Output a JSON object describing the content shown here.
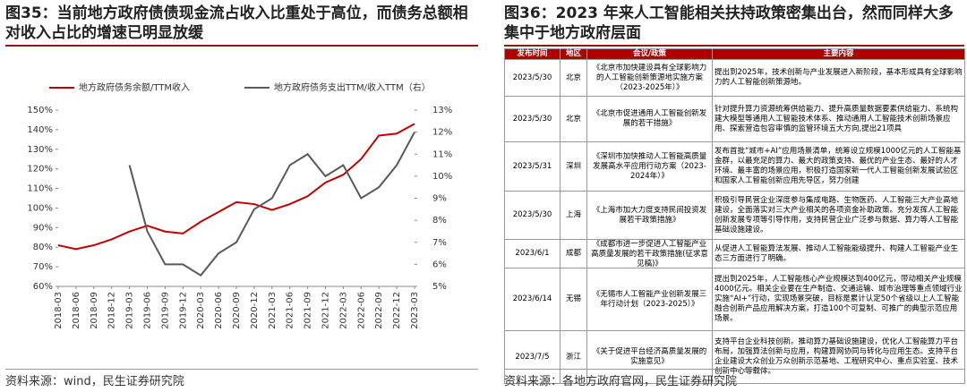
{
  "left": {
    "title": "图35：当前地方政府债债现金流占收入比重处于高位，而债务总额相对收入占比的增速已明显放缓",
    "source": "资料来源：wind，民生证券研究院"
  },
  "chart_data": {
    "type": "line",
    "categories": [
      "2018-03",
      "2018-06",
      "2018-09",
      "2018-12",
      "2019-03",
      "2019-06",
      "2019-09",
      "2019-12",
      "2020-03",
      "2020-06",
      "2020-09",
      "2020-12",
      "2021-03",
      "2021-06",
      "2021-09",
      "2021-12",
      "2022-03",
      "2022-06",
      "2022-09",
      "2022-12",
      "2023-03"
    ],
    "series": [
      {
        "name": "地方政府债务余额/TTM收入",
        "color": "#c00000",
        "values": [
          81,
          79,
          81,
          84,
          88,
          91,
          88,
          87,
          93,
          98,
          103,
          102,
          99,
          102,
          106,
          113,
          117,
          125,
          137,
          138,
          143
        ]
      },
      {
        "name": "地方政府债务支出TTM/收入TTM（右）",
        "color": "#595959",
        "axis": "y2",
        "values": [
          null,
          null,
          null,
          null,
          10.5,
          7.5,
          6.0,
          6.0,
          5.5,
          6.5,
          7.0,
          8.5,
          9.0,
          10.5,
          11.0,
          10.0,
          10.5,
          9.0,
          9.5,
          10.5,
          12.0
        ]
      }
    ],
    "ylim": [
      60,
      150
    ],
    "yticks": [
      {
        "value": 60,
        "label": "60%"
      },
      {
        "value": 70,
        "label": "70%"
      },
      {
        "value": 80,
        "label": "80%"
      },
      {
        "value": 90,
        "label": "90%"
      },
      {
        "value": 100,
        "label": "100%"
      },
      {
        "value": 110,
        "label": "110%"
      },
      {
        "value": 120,
        "label": "120%"
      },
      {
        "value": 130,
        "label": "130%"
      },
      {
        "value": 140,
        "label": "140%"
      },
      {
        "value": 150,
        "label": "150%"
      }
    ],
    "y2lim": [
      5,
      13
    ],
    "y2ticks": [
      {
        "value": 5,
        "label": "5%"
      },
      {
        "value": 6,
        "label": "6%"
      },
      {
        "value": 7,
        "label": "7%"
      },
      {
        "value": 8,
        "label": "8%"
      },
      {
        "value": 9,
        "label": "9%"
      },
      {
        "value": 10,
        "label": "10%"
      },
      {
        "value": 11,
        "label": "11%"
      },
      {
        "value": 12,
        "label": "12%"
      },
      {
        "value": 13,
        "label": "13%"
      }
    ],
    "legend": "top"
  },
  "right": {
    "title": "图36：2023 年来人工智能相关扶持政策密集出台，然而同样大多集中于地方政府层面",
    "source": "资料来源：各地方政府官网，民生证券研究院"
  },
  "table": {
    "header": [
      "发布时间",
      "地区",
      "会议/政策",
      "主要内容"
    ],
    "rows": [
      [
        "2023/5/30",
        "北京",
        "《北京市加快建设具有全球影响力的人工智能创新策源地实施方案（2023-2025年）》",
        "提出到2025年，技术创新与产业发展进入新阶段，基本形成具有全球影响力的人工智能创新策源地。"
      ],
      [
        "2023/5/30",
        "北京",
        "《北京市促进通用人工智能创新发展的若干措施》",
        "针对提升算力资源统筹供给能力、提升高质量数据要素供给能力、系统构建大模型等通用人工智能技术体系、推动通用人工智能技术创新场景应用、探索营造包容审慎的监管环境五大方向,提出21项具"
      ],
      [
        "2023/5/31",
        "深圳",
        "《深圳市加快推动人工智能高质量发展高水平应用行动方案（2023-2024年）》",
        "发布首批“城市+AI”应用场景清单，统筹设立规模1000亿元的人工智能基金群，以最充足的算力、最大的政策支持、最优的产业生态、最好的人才环境、最丰富的场景应用，积极打造国家新一代人工智能创新发展试验区和国家人工智能创新应用先导区，努力创建"
      ],
      [
        "2023/5/30",
        "上海",
        "《上海市加大力度支持民间投资发展若干政策措施》",
        "积极引导民营企业深度参与集成电路、生物医药、人工智能三大产业高地建设，全面落实对三大产业相关的各项资金补助政策。充分发挥人工智能创新发展专项等引导作用，支持民营企业广泛参与数据、算力等人工智能基础设施建设。"
      ],
      [
        "2023/6/1",
        "成都",
        "《成都市进一步促进人工智能产业高质量发展的若干政策措施(征求意见稿)》",
        "从促进人工智能算法发展、推动人工智能能级提升、构建人工智能产业生态三方面进行了明确。"
      ],
      [
        "2023/6/14",
        "无锡",
        "《无锡市人工智能产业创新发展三年行动计划（2023-2025）》",
        "提出到2025年，人工智能核心产业规模达到400亿元，带动相关产业规模4000亿元。相关企业要在生产制造、交通运输、城市治理等重点领域行业实施“AI+”行动，实现场景突破，目标是累计认定50个省级以上人工智能融合创新产品应用解决方案，打造100个可复制、可推广的典型示范应用场景。"
      ],
      [
        "2023/7/5",
        "浙江",
        "《关于促进平台经济高质量发展的实施意见》",
        "支持平台企业科技创新。推动算力基础设施建设，优化人工智能算力平台布局，加强算法创新与应用，构建算网协同与转化与应用生态。支持平台企业建设大众创业万众创新示范基地、工程研究中心、重点实验室、技术创新中心等载体。"
      ]
    ]
  }
}
